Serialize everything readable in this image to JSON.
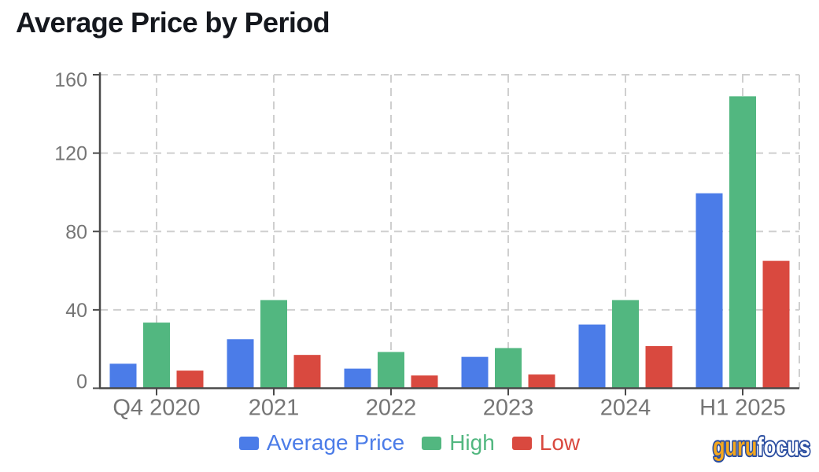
{
  "chart_data": {
    "type": "bar",
    "title": "Average Price by Period",
    "categories": [
      "Q4 2020",
      "2021",
      "2022",
      "2023",
      "2024",
      "H1 2025"
    ],
    "series": [
      {
        "name": "Average Price",
        "color": "#4b7ce8",
        "values": [
          12.5,
          25,
          10,
          16,
          32.5,
          99.5
        ]
      },
      {
        "name": "High",
        "color": "#52b780",
        "values": [
          33.5,
          45,
          18.5,
          20.5,
          45,
          149
        ]
      },
      {
        "name": "Low",
        "color": "#d9493f",
        "values": [
          9,
          17,
          6.5,
          7,
          21.5,
          65
        ]
      }
    ],
    "xlabel": "",
    "ylabel": "",
    "ylim": [
      0,
      160
    ],
    "yticks": [
      0,
      40,
      80,
      120,
      160
    ],
    "grid": true,
    "legend_position": "bottom",
    "title_color": "#15181e",
    "axis_color": "#4a4a4a",
    "grid_color": "#cfcfcf",
    "tick_label_color": "#757575"
  },
  "logo": {
    "part1": "guru",
    "part2": "focus",
    "part1_color": "#f5a81d",
    "part2_color": "#ffffff",
    "outline_color": "#2a4da0"
  }
}
